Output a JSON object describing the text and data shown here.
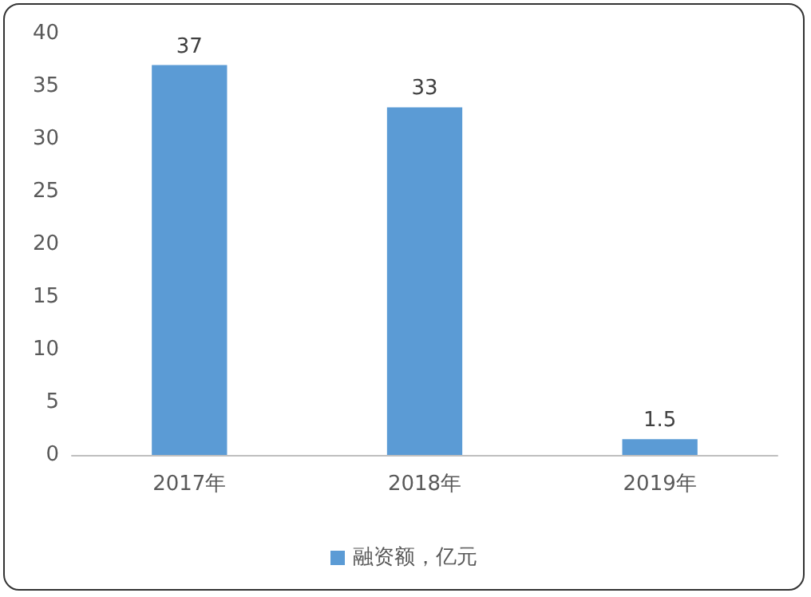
{
  "chart_data": {
    "type": "bar",
    "categories": [
      "2017年",
      "2018年",
      "2019年"
    ],
    "series": [
      {
        "name": "融资额，亿元",
        "color": "#5b9bd5",
        "values": [
          37,
          33,
          1.5
        ]
      }
    ],
    "ylim": [
      0,
      40
    ],
    "yticks": [
      0,
      5,
      10,
      15,
      20,
      25,
      30,
      35,
      40
    ],
    "grid": false,
    "data_labels": true,
    "legend": "bottom"
  }
}
